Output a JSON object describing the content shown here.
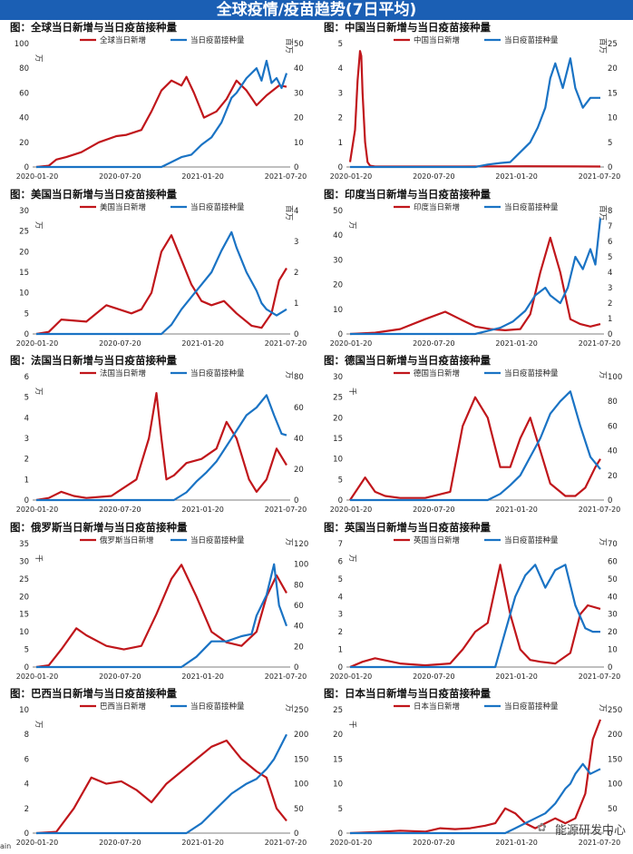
{
  "page_title": "全球疫情/疫苗趋势(7日平均)",
  "watermark": "能源研发中心",
  "cut_text": "ain",
  "colors": {
    "cases": "#c0161b",
    "vaccine": "#1a73c4"
  },
  "x_ticks": [
    "2020-01-20",
    "2020-07-20",
    "2021-01-20",
    "2021-07-20"
  ],
  "chart_data": [
    {
      "type": "line",
      "title": "图：全球当日新增与当日疫苗接种量",
      "left_unit": "万",
      "right_unit": "百万",
      "left_ylim": [
        0,
        100
      ],
      "left_ticks": [
        0,
        20,
        40,
        60,
        80,
        100
      ],
      "right_ylim": [
        0,
        50
      ],
      "right_ticks": [
        0,
        10,
        20,
        30,
        40,
        50
      ],
      "series": [
        {
          "name": "全球当日新增",
          "axis": "left",
          "x": [
            0,
            0.05,
            0.08,
            0.12,
            0.18,
            0.25,
            0.32,
            0.36,
            0.42,
            0.46,
            0.5,
            0.54,
            0.58,
            0.6,
            0.63,
            0.67,
            0.72,
            0.76,
            0.8,
            0.84,
            0.88,
            0.92,
            0.97,
            1
          ],
          "y": [
            0,
            1,
            6,
            8,
            12,
            20,
            25,
            26,
            30,
            45,
            62,
            70,
            66,
            73,
            60,
            40,
            45,
            55,
            70,
            62,
            50,
            58,
            66,
            65
          ]
        },
        {
          "name": "当日疫苗接种量",
          "axis": "right",
          "x": [
            0,
            0.5,
            0.54,
            0.58,
            0.62,
            0.66,
            0.7,
            0.74,
            0.78,
            0.8,
            0.84,
            0.88,
            0.9,
            0.92,
            0.94,
            0.96,
            0.98,
            1
          ],
          "y": [
            0,
            0,
            2,
            4,
            5,
            9,
            12,
            18,
            28,
            30,
            36,
            40,
            35,
            43,
            34,
            36,
            32,
            38
          ]
        }
      ]
    },
    {
      "type": "line",
      "title": "图：中国当日新增与当日疫苗接种量",
      "left_unit": "",
      "right_unit": "百万",
      "left_ylim": [
        0,
        5
      ],
      "left_ticks": [
        0,
        1,
        2,
        3,
        4,
        5
      ],
      "right_ylim": [
        0,
        25
      ],
      "right_ticks": [
        0,
        5,
        10,
        15,
        20,
        25
      ],
      "series": [
        {
          "name": "中国当日新增",
          "axis": "left",
          "x": [
            0,
            0.02,
            0.03,
            0.04,
            0.045,
            0.05,
            0.06,
            0.07,
            0.08,
            0.1,
            0.4,
            0.7,
            1
          ],
          "y": [
            0.2,
            1.5,
            3.5,
            4.7,
            4.5,
            3,
            1,
            0.2,
            0.05,
            0.02,
            0.02,
            0.03,
            0.02
          ]
        },
        {
          "name": "当日疫苗接种量",
          "axis": "right",
          "x": [
            0,
            0.5,
            0.55,
            0.6,
            0.64,
            0.68,
            0.72,
            0.75,
            0.78,
            0.8,
            0.82,
            0.85,
            0.88,
            0.9,
            0.93,
            0.96,
            1
          ],
          "y": [
            0,
            0,
            0.5,
            0.8,
            1,
            3,
            5,
            8,
            12,
            18,
            21,
            16,
            22,
            16,
            12,
            14,
            14
          ]
        }
      ]
    },
    {
      "type": "line",
      "title": "图：美国当日新增与当日疫苗接种量",
      "left_unit": "万",
      "right_unit": "百万",
      "left_ylim": [
        0,
        30
      ],
      "left_ticks": [
        0,
        5,
        10,
        15,
        20,
        25,
        30
      ],
      "right_ylim": [
        0,
        4
      ],
      "right_ticks": [
        0,
        1,
        2,
        3,
        4
      ],
      "series": [
        {
          "name": "美国当日新增",
          "axis": "left",
          "x": [
            0,
            0.05,
            0.1,
            0.2,
            0.28,
            0.33,
            0.38,
            0.42,
            0.46,
            0.5,
            0.54,
            0.58,
            0.62,
            0.66,
            0.7,
            0.75,
            0.8,
            0.86,
            0.9,
            0.94,
            0.97,
            1
          ],
          "y": [
            0,
            0.5,
            3.5,
            3,
            7,
            6,
            5,
            6,
            10,
            20,
            24,
            18,
            12,
            8,
            7,
            8,
            5,
            2,
            1.5,
            5,
            13,
            16
          ]
        },
        {
          "name": "当日疫苗接种量",
          "axis": "right",
          "x": [
            0,
            0.5,
            0.54,
            0.58,
            0.62,
            0.66,
            0.7,
            0.74,
            0.78,
            0.8,
            0.84,
            0.88,
            0.9,
            0.92,
            0.96,
            1
          ],
          "y": [
            0,
            0,
            0.3,
            0.8,
            1.2,
            1.6,
            2,
            2.7,
            3.3,
            2.8,
            2,
            1.4,
            1,
            0.8,
            0.6,
            0.8
          ]
        }
      ]
    },
    {
      "type": "line",
      "title": "图：印度当日新增与当日疫苗接种量",
      "left_unit": "万",
      "right_unit": "百万",
      "left_ylim": [
        0,
        50
      ],
      "left_ticks": [
        0,
        10,
        20,
        30,
        40,
        50
      ],
      "right_ylim": [
        0,
        8
      ],
      "right_ticks": [
        0,
        1,
        2,
        3,
        4,
        5,
        6,
        7,
        8
      ],
      "series": [
        {
          "name": "印度当日新增",
          "axis": "left",
          "x": [
            0,
            0.1,
            0.2,
            0.3,
            0.38,
            0.44,
            0.5,
            0.56,
            0.62,
            0.68,
            0.72,
            0.76,
            0.8,
            0.84,
            0.88,
            0.92,
            0.96,
            1
          ],
          "y": [
            0,
            0.5,
            2,
            6,
            9,
            6,
            3,
            2,
            1.5,
            2,
            8,
            25,
            39,
            25,
            6,
            4,
            3,
            4
          ]
        },
        {
          "name": "当日疫苗接种量",
          "axis": "right",
          "x": [
            0,
            0.5,
            0.55,
            0.6,
            0.65,
            0.7,
            0.74,
            0.78,
            0.8,
            0.84,
            0.87,
            0.9,
            0.93,
            0.96,
            0.98,
            1
          ],
          "y": [
            0,
            0,
            0.2,
            0.4,
            0.8,
            1.5,
            2.5,
            3,
            2.5,
            2,
            3,
            5,
            4.2,
            5.5,
            4.5,
            7.5
          ]
        }
      ]
    },
    {
      "type": "line",
      "title": "图：法国当日新增与当日疫苗接种量",
      "left_unit": "万",
      "right_unit": "万",
      "left_ylim": [
        0,
        6
      ],
      "left_ticks": [
        0,
        1,
        2,
        3,
        4,
        5,
        6
      ],
      "right_ylim": [
        0,
        80
      ],
      "right_ticks": [
        0,
        20,
        40,
        60,
        80
      ],
      "series": [
        {
          "name": "法国当日新增",
          "axis": "left",
          "x": [
            0,
            0.05,
            0.1,
            0.15,
            0.2,
            0.3,
            0.4,
            0.45,
            0.48,
            0.5,
            0.52,
            0.55,
            0.6,
            0.66,
            0.72,
            0.76,
            0.8,
            0.85,
            0.88,
            0.92,
            0.96,
            1
          ],
          "y": [
            0,
            0.1,
            0.4,
            0.2,
            0.1,
            0.2,
            1,
            3,
            5.2,
            3,
            1,
            1.2,
            1.8,
            2,
            2.5,
            3.8,
            3,
            1,
            0.4,
            1,
            2.5,
            1.7
          ]
        },
        {
          "name": "当日疫苗接种量",
          "axis": "right",
          "x": [
            0,
            0.55,
            0.6,
            0.64,
            0.68,
            0.72,
            0.76,
            0.8,
            0.84,
            0.88,
            0.92,
            0.95,
            0.98,
            1
          ],
          "y": [
            0,
            0,
            5,
            12,
            18,
            25,
            35,
            45,
            55,
            60,
            68,
            55,
            43,
            42
          ]
        }
      ]
    },
    {
      "type": "line",
      "title": "图：德国当日新增与当日疫苗接种量",
      "left_unit": "千",
      "right_unit": "万",
      "left_ylim": [
        0,
        30
      ],
      "left_ticks": [
        0,
        5,
        10,
        15,
        20,
        25,
        30
      ],
      "right_ylim": [
        0,
        100
      ],
      "right_ticks": [
        0,
        20,
        40,
        60,
        80,
        100
      ],
      "series": [
        {
          "name": "德国当日新增",
          "axis": "left",
          "x": [
            0,
            0.06,
            0.1,
            0.14,
            0.2,
            0.3,
            0.4,
            0.45,
            0.5,
            0.55,
            0.6,
            0.64,
            0.68,
            0.72,
            0.76,
            0.8,
            0.86,
            0.9,
            0.94,
            0.98,
            1
          ],
          "y": [
            0,
            5.5,
            2,
            1,
            0.5,
            0.5,
            2,
            18,
            25,
            20,
            8,
            8,
            15,
            20,
            12,
            4,
            1,
            1,
            3,
            8,
            10
          ]
        },
        {
          "name": "当日疫苗接种量",
          "axis": "right",
          "x": [
            0,
            0.55,
            0.6,
            0.64,
            0.68,
            0.72,
            0.76,
            0.8,
            0.84,
            0.88,
            0.92,
            0.96,
            1
          ],
          "y": [
            0,
            0,
            5,
            12,
            20,
            35,
            50,
            70,
            80,
            88,
            60,
            35,
            25
          ]
        }
      ]
    },
    {
      "type": "line",
      "title": "图：俄罗斯当日新增与当日疫苗接种量",
      "left_unit": "千",
      "right_unit": "万",
      "left_ylim": [
        0,
        35
      ],
      "left_ticks": [
        0,
        5,
        10,
        15,
        20,
        25,
        30,
        35
      ],
      "right_ylim": [
        0,
        120
      ],
      "right_ticks": [
        0,
        20,
        40,
        60,
        80,
        100,
        120
      ],
      "series": [
        {
          "name": "俄罗斯当日新增",
          "axis": "left",
          "x": [
            0,
            0.05,
            0.1,
            0.16,
            0.2,
            0.28,
            0.35,
            0.42,
            0.48,
            0.54,
            0.58,
            0.64,
            0.7,
            0.76,
            0.82,
            0.88,
            0.92,
            0.96,
            1
          ],
          "y": [
            0,
            0.5,
            5,
            11,
            9,
            6,
            5,
            6,
            15,
            25,
            29,
            20,
            10,
            7,
            6,
            10,
            20,
            26,
            21
          ]
        },
        {
          "name": "当日疫苗接种量",
          "axis": "right",
          "x": [
            0,
            0.58,
            0.64,
            0.7,
            0.76,
            0.82,
            0.86,
            0.88,
            0.92,
            0.95,
            0.97,
            1
          ],
          "y": [
            0,
            0,
            10,
            25,
            25,
            30,
            32,
            50,
            70,
            100,
            60,
            40
          ]
        }
      ]
    },
    {
      "type": "line",
      "title": "图：英国当日新增与当日疫苗接种量",
      "left_unit": "万",
      "right_unit": "万",
      "left_ylim": [
        0,
        7
      ],
      "left_ticks": [
        0,
        1,
        2,
        3,
        4,
        5,
        6,
        7
      ],
      "right_ylim": [
        0,
        70
      ],
      "right_ticks": [
        0,
        10,
        20,
        30,
        40,
        50,
        60,
        70
      ],
      "series": [
        {
          "name": "英国当日新增",
          "axis": "left",
          "x": [
            0,
            0.05,
            0.1,
            0.2,
            0.3,
            0.4,
            0.45,
            0.5,
            0.55,
            0.6,
            0.64,
            0.68,
            0.72,
            0.76,
            0.82,
            0.88,
            0.92,
            0.95,
            1
          ],
          "y": [
            0,
            0.3,
            0.5,
            0.2,
            0.1,
            0.2,
            1,
            2,
            2.5,
            5.8,
            3,
            1,
            0.4,
            0.3,
            0.2,
            0.8,
            3,
            3.5,
            3.3
          ]
        },
        {
          "name": "当日疫苗接种量",
          "axis": "right",
          "x": [
            0,
            0.58,
            0.62,
            0.66,
            0.7,
            0.74,
            0.78,
            0.82,
            0.86,
            0.9,
            0.94,
            0.97,
            1
          ],
          "y": [
            0,
            0,
            20,
            40,
            52,
            58,
            45,
            55,
            58,
            35,
            22,
            20,
            20
          ]
        }
      ]
    },
    {
      "type": "line",
      "title": "图：巴西当日新增与当日疫苗接种量",
      "left_unit": "万",
      "right_unit": "万",
      "left_ylim": [
        0,
        10
      ],
      "left_ticks": [
        0,
        2,
        4,
        6,
        8,
        10
      ],
      "right_ylim": [
        0,
        250
      ],
      "right_ticks": [
        0,
        50,
        100,
        150,
        200,
        250
      ],
      "series": [
        {
          "name": "巴西当日新增",
          "axis": "left",
          "x": [
            0,
            0.08,
            0.15,
            0.22,
            0.28,
            0.34,
            0.4,
            0.46,
            0.52,
            0.58,
            0.64,
            0.7,
            0.76,
            0.82,
            0.88,
            0.92,
            0.96,
            1
          ],
          "y": [
            0,
            0.1,
            2,
            4.5,
            4,
            4.2,
            3.5,
            2.5,
            4,
            5,
            6,
            7,
            7.5,
            6,
            5,
            4.5,
            2,
            1
          ]
        },
        {
          "name": "当日疫苗接种量",
          "axis": "right",
          "x": [
            0,
            0.6,
            0.66,
            0.72,
            0.78,
            0.84,
            0.88,
            0.92,
            0.95,
            0.98,
            1
          ],
          "y": [
            0,
            0,
            20,
            50,
            80,
            100,
            110,
            130,
            150,
            180,
            200
          ]
        }
      ]
    },
    {
      "type": "line",
      "title": "图：日本当日新增与当日疫苗接种量",
      "left_unit": "千",
      "right_unit": "万",
      "left_ylim": [
        0,
        25
      ],
      "left_ticks": [
        0,
        5,
        10,
        15,
        20,
        25
      ],
      "right_ylim": [
        0,
        250
      ],
      "right_ticks": [
        0,
        50,
        100,
        150,
        200,
        250
      ],
      "series": [
        {
          "name": "日本当日新增",
          "axis": "left",
          "x": [
            0,
            0.1,
            0.2,
            0.3,
            0.36,
            0.42,
            0.48,
            0.54,
            0.58,
            0.62,
            0.66,
            0.7,
            0.74,
            0.78,
            0.82,
            0.86,
            0.9,
            0.94,
            0.97,
            1
          ],
          "y": [
            0,
            0.2,
            0.5,
            0.3,
            1,
            0.8,
            1,
            1.5,
            2,
            5,
            4,
            2,
            1,
            2,
            3,
            2,
            3,
            8,
            19,
            23
          ]
        },
        {
          "name": "当日疫苗接种量",
          "axis": "right",
          "x": [
            0,
            0.62,
            0.66,
            0.7,
            0.74,
            0.78,
            0.82,
            0.86,
            0.88,
            0.9,
            0.93,
            0.96,
            1
          ],
          "y": [
            0,
            0,
            10,
            20,
            30,
            40,
            60,
            90,
            100,
            120,
            140,
            120,
            130
          ]
        }
      ]
    }
  ]
}
